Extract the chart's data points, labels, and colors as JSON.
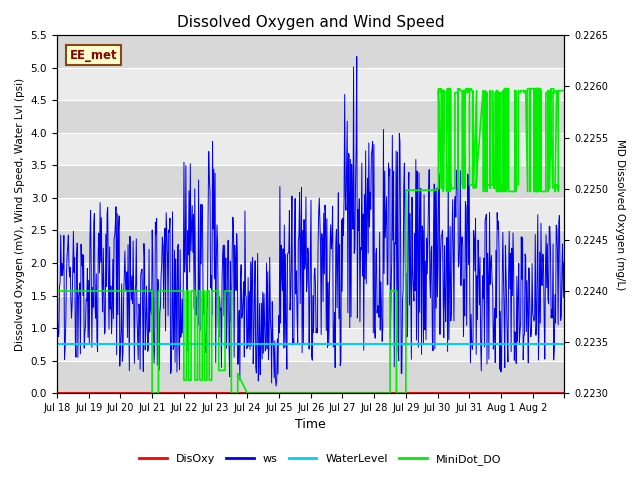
{
  "title": "Dissolved Oxygen and Wind Speed",
  "xlabel": "Time",
  "ylabel_left": "Dissolved Oxygen (mV), Wind Speed, Water Lvl (psi)",
  "ylabel_right": "MD Dissolved Oxygen (mg/L)",
  "ylim_left": [
    0.0,
    5.5
  ],
  "ylim_right": [
    0.223,
    0.2265
  ],
  "annotation_text": "EE_met",
  "annotation_fg": "#8b0000",
  "annotation_bg": "#ffffcc",
  "annotation_edge": "#8b4513",
  "bg_color": "#ebebeb",
  "bg_band_color": "#d8d8d8",
  "colors": {
    "DisOxy": "#ff0000",
    "ws": "#0000ee",
    "WaterLevel": "#00ccff",
    "MiniDot_DO": "#00ee00"
  },
  "water_level_val": 0.75,
  "disoxy_val": 0.0,
  "n_days": 16,
  "xtick_labels": [
    "Jul 18",
    "Jul 19",
    "Jul 20",
    "Jul 21",
    "Jul 22",
    "Jul 23",
    "Jul 24",
    "Jul 25",
    "Jul 26",
    "Jul 27",
    "Jul 28",
    "Jul 29",
    "Jul 30",
    "Jul 31",
    "Aug 1",
    "Aug 2",
    ""
  ],
  "figsize": [
    6.4,
    4.8
  ],
  "dpi": 100
}
